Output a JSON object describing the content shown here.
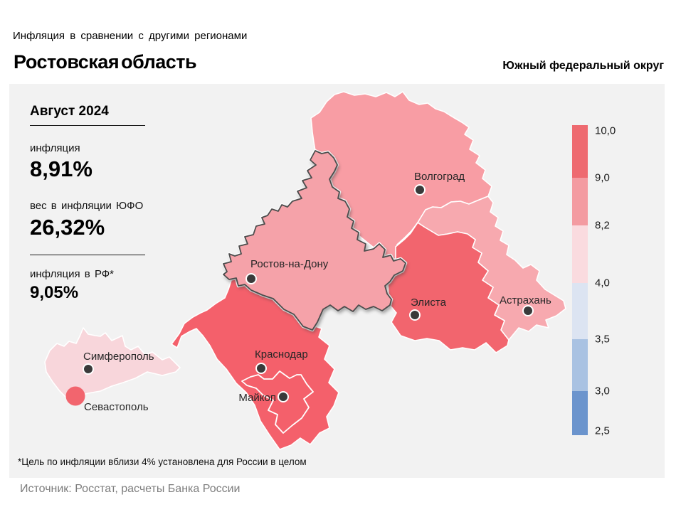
{
  "header": {
    "kicker": "Инфляция в сравнении с другими регионами",
    "title": "Ростовская область",
    "district": "Южный федеральный округ"
  },
  "stats": {
    "period": "Август 2024",
    "items": [
      {
        "label": "инфляция",
        "value": "8,91%"
      },
      {
        "label": "вес в инфляции ЮФО",
        "value": "26,32%"
      },
      {
        "label": "инфляция в РФ*",
        "value": "9,05%"
      }
    ]
  },
  "legend": {
    "ticks": [
      "10,0",
      "9,0",
      "8,2",
      "4,0",
      "3,5",
      "3,0",
      "2,5"
    ],
    "segments": [
      {
        "range": "9,0–10,0",
        "color": "#EE6A70"
      },
      {
        "range": "8,2–9,0",
        "color": "#F39BA1"
      },
      {
        "range": "4,0–8,2",
        "color": "#FADBDF"
      },
      {
        "range": "3,5–4,0",
        "color": "#DCE4F2"
      },
      {
        "range": "3,0–3,5",
        "color": "#A9C2E2"
      },
      {
        "range": "2,5–3,0",
        "color": "#6B94CD"
      }
    ]
  },
  "map": {
    "regions": {
      "volgograd": {
        "color": "#F89DA4"
      },
      "rostov": {
        "color": "#F5A2A9"
      },
      "astrakhan": {
        "color": "#F7A9AF"
      },
      "kalmykia": {
        "color": "#F2656E"
      },
      "krasnodar": {
        "color": "#F4606B"
      },
      "crimea": {
        "color": "#F8D6DB"
      },
      "sevastopol": {
        "color": "#F2656E"
      }
    },
    "cities": [
      {
        "label": "Волгоград"
      },
      {
        "label": "Ростов-на-Дону"
      },
      {
        "label": "Элиста"
      },
      {
        "label": "Астрахань"
      },
      {
        "label": "Краснодар"
      },
      {
        "label": "Майкоп"
      },
      {
        "label": "Симферополь"
      },
      {
        "label": "Севастополь"
      }
    ]
  },
  "footnote": "*Цель по инфляции вблизи 4% установлена для России в целом",
  "source": "Источник: Росстат, расчеты Банка России",
  "chart_data": {
    "type": "heatmap",
    "title": "Инфляция в сравнении с другими регионами — Ростовская область, Август 2024",
    "subtitle": "Южный федеральный округ",
    "kpis": {
      "инфляция": "8,91%",
      "вес в инфляции ЮФО": "26,32%",
      "инфляция в РФ": "9,05%"
    },
    "scale": {
      "tick_values": [
        10.0,
        9.0,
        8.2,
        4.0,
        3.5,
        3.0,
        2.5
      ],
      "colors": [
        "#EE6A70",
        "#F39BA1",
        "#FADBDF",
        "#DCE4F2",
        "#A9C2E2",
        "#6B94CD"
      ]
    },
    "regions": [
      {
        "name": "Волгоград",
        "value_class": "8,2–9,0"
      },
      {
        "name": "Ростов-на-Дону",
        "value_class": "8,2–9,0",
        "value": "8,91%",
        "selected": true
      },
      {
        "name": "Элиста",
        "value_class": "9,0–10,0"
      },
      {
        "name": "Астрахань",
        "value_class": "8,2–9,0"
      },
      {
        "name": "Краснодар",
        "value_class": "9,0–10,0"
      },
      {
        "name": "Майкоп",
        "value_class": "9,0–10,0"
      },
      {
        "name": "Симферополь",
        "value_class": "4,0–8,2"
      },
      {
        "name": "Севастополь",
        "value_class": "9,0–10,0"
      }
    ],
    "footnote": "*Цель по инфляции вблизи 4% установлена для России в целом",
    "source": "Источник: Росстат, расчеты Банка России"
  }
}
